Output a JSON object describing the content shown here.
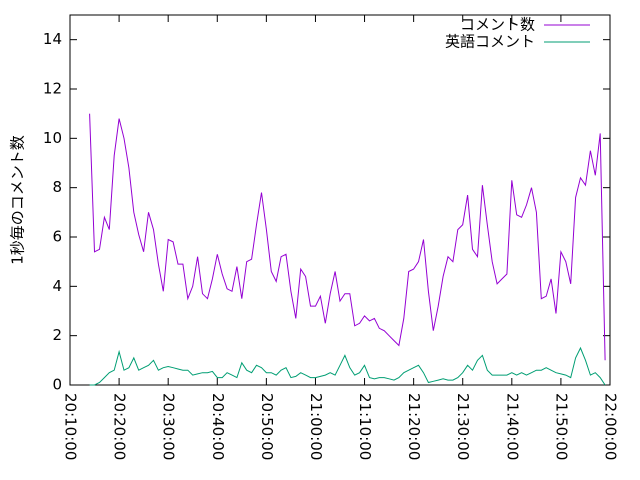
{
  "chart_data": {
    "type": "line",
    "ylabel": "1秒毎のコメント数",
    "x": [
      "20:14:00",
      "20:15:00",
      "20:16:00",
      "20:17:00",
      "20:18:00",
      "20:19:00",
      "20:20:00",
      "20:21:00",
      "20:22:00",
      "20:23:00",
      "20:24:00",
      "20:25:00",
      "20:26:00",
      "20:27:00",
      "20:28:00",
      "20:29:00",
      "20:30:00",
      "20:31:00",
      "20:32:00",
      "20:33:00",
      "20:34:00",
      "20:35:00",
      "20:36:00",
      "20:37:00",
      "20:38:00",
      "20:39:00",
      "20:40:00",
      "20:41:00",
      "20:42:00",
      "20:43:00",
      "20:44:00",
      "20:45:00",
      "20:46:00",
      "20:47:00",
      "20:48:00",
      "20:49:00",
      "20:50:00",
      "20:51:00",
      "20:52:00",
      "20:53:00",
      "20:54:00",
      "20:55:00",
      "20:56:00",
      "20:57:00",
      "20:58:00",
      "20:59:00",
      "21:00:00",
      "21:01:00",
      "21:02:00",
      "21:03:00",
      "21:04:00",
      "21:05:00",
      "21:06:00",
      "21:07:00",
      "21:08:00",
      "21:09:00",
      "21:10:00",
      "21:11:00",
      "21:12:00",
      "21:13:00",
      "21:14:00",
      "21:15:00",
      "21:16:00",
      "21:17:00",
      "21:18:00",
      "21:19:00",
      "21:20:00",
      "21:21:00",
      "21:22:00",
      "21:23:00",
      "21:24:00",
      "21:25:00",
      "21:26:00",
      "21:27:00",
      "21:28:00",
      "21:29:00",
      "21:30:00",
      "21:31:00",
      "21:32:00",
      "21:33:00",
      "21:34:00",
      "21:35:00",
      "21:36:00",
      "21:37:00",
      "21:38:00",
      "21:39:00",
      "21:40:00",
      "21:41:00",
      "21:42:00",
      "21:43:00",
      "21:44:00",
      "21:45:00",
      "21:46:00",
      "21:47:00",
      "21:48:00",
      "21:49:00",
      "21:50:00",
      "21:51:00",
      "21:52:00",
      "21:53:00",
      "21:54:00",
      "21:55:00",
      "21:56:00",
      "21:57:00",
      "21:58:00",
      "21:59:00"
    ],
    "series": [
      {
        "name": "コメント数",
        "color": "#9400d3",
        "values": [
          11,
          5.4,
          5.5,
          6.8,
          6.3,
          9.3,
          10.8,
          10,
          8.8,
          7,
          6.1,
          5.4,
          7,
          6.3,
          4.9,
          3.8,
          5.9,
          5.8,
          4.9,
          4.9,
          3.5,
          4,
          5.2,
          3.7,
          3.5,
          4.3,
          5.3,
          4.5,
          3.9,
          3.8,
          4.8,
          3.5,
          5,
          5.1,
          6.5,
          7.8,
          6.3,
          4.6,
          4.2,
          5.2,
          5.3,
          3.8,
          2.7,
          4.7,
          4.4,
          3.2,
          3.2,
          3.6,
          2.5,
          3.7,
          4.6,
          3.4,
          3.7,
          3.7,
          2.4,
          2.5,
          2.8,
          2.6,
          2.7,
          2.3,
          2.2,
          2,
          1.8,
          1.6,
          2.7,
          4.6,
          4.7,
          5,
          5.9,
          3.8,
          2.2,
          3.2,
          4.4,
          5.2,
          5,
          6.3,
          6.5,
          7.7,
          5.5,
          5.2,
          8.1,
          6.5,
          5,
          4.1,
          4.3,
          4.5,
          8.3,
          6.9,
          6.8,
          7.3,
          8,
          7,
          3.5,
          3.6,
          4.3,
          2.9,
          5.4,
          5,
          4.1,
          7.6,
          8.4,
          8.1,
          9.5,
          8.5,
          10.2,
          1
        ]
      },
      {
        "name": "英語コメント",
        "color": "#009e73",
        "values": [
          0,
          0,
          0.1,
          0.3,
          0.5,
          0.6,
          1.35,
          0.6,
          0.7,
          1.1,
          0.6,
          0.7,
          0.8,
          1.0,
          0.6,
          0.7,
          0.75,
          0.7,
          0.65,
          0.6,
          0.6,
          0.4,
          0.45,
          0.5,
          0.5,
          0.55,
          0.3,
          0.3,
          0.5,
          0.4,
          0.3,
          0.9,
          0.6,
          0.5,
          0.8,
          0.7,
          0.5,
          0.5,
          0.4,
          0.6,
          0.7,
          0.3,
          0.35,
          0.5,
          0.4,
          0.3,
          0.3,
          0.35,
          0.4,
          0.5,
          0.4,
          0.8,
          1.2,
          0.7,
          0.4,
          0.5,
          0.8,
          0.3,
          0.25,
          0.3,
          0.3,
          0.25,
          0.2,
          0.3,
          0.5,
          0.6,
          0.7,
          0.8,
          0.5,
          0.1,
          0.15,
          0.2,
          0.25,
          0.2,
          0.2,
          0.3,
          0.5,
          0.8,
          0.6,
          1.0,
          1.2,
          0.6,
          0.4,
          0.4,
          0.4,
          0.4,
          0.5,
          0.4,
          0.5,
          0.4,
          0.5,
          0.6,
          0.6,
          0.7,
          0.6,
          0.5,
          0.45,
          0.4,
          0.3,
          1.1,
          1.5,
          1.0,
          0.4,
          0.5,
          0.3,
          0
        ]
      }
    ],
    "xlim": [
      "20:10:00",
      "22:00:00"
    ],
    "xticks": [
      "20:10:00",
      "20:20:00",
      "20:30:00",
      "20:40:00",
      "20:50:00",
      "21:00:00",
      "21:10:00",
      "21:20:00",
      "21:30:00",
      "21:40:00",
      "21:50:00",
      "22:00:00"
    ],
    "ylim": [
      0,
      15
    ],
    "yticks": [
      0,
      2,
      4,
      6,
      8,
      10,
      12,
      14
    ],
    "legend": "top-right"
  }
}
